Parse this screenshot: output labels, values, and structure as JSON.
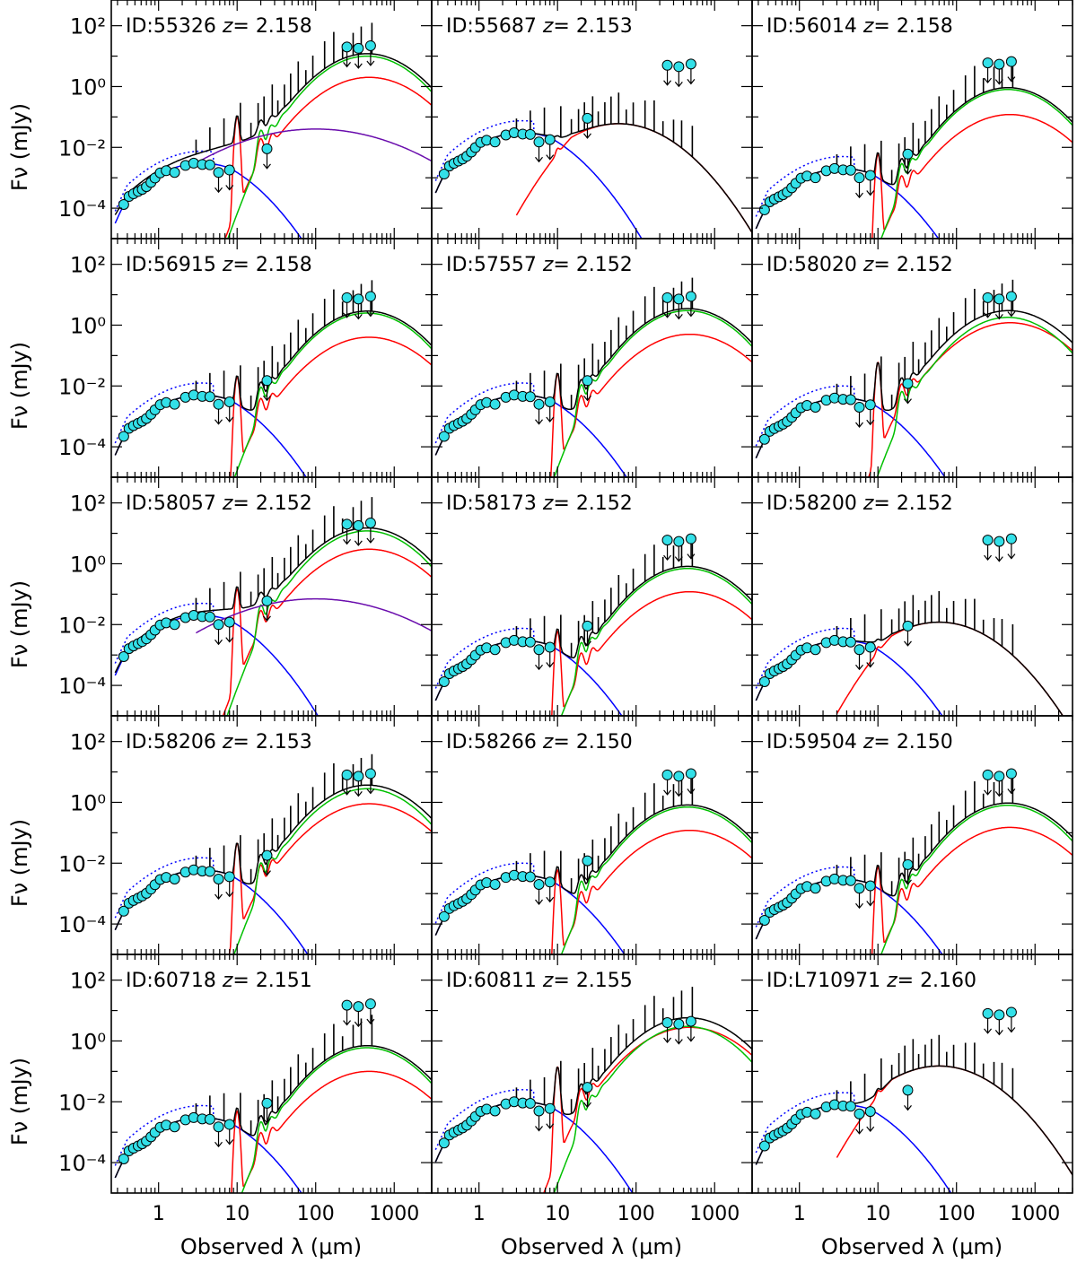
{
  "chart_data": {
    "type": "line",
    "layout": "5 rows x 3 columns grid of SED panels",
    "xlabel": "Observed λ (μm)",
    "ylabel": "Fν (mJy)",
    "xscale": "log",
    "yscale": "log",
    "xlim": [
      0.25,
      3000
    ],
    "ylim": [
      1e-05,
      700
    ],
    "xticks": [
      1,
      10,
      100,
      1000
    ],
    "xtick_labels": [
      "1",
      "10",
      "100",
      "1000"
    ],
    "yticks": [
      0.0001,
      0.01,
      1,
      100
    ],
    "ytick_labels": [
      "10⁻⁴",
      "10⁻²",
      "10⁰",
      "10²"
    ],
    "series_colors": {
      "total": "#000000",
      "stellar": "#0000ff",
      "unattenuated_stellar": "#0000ff",
      "dust": "#00c000",
      "dust_alt": "#ff0000",
      "agn": "#6a0dad",
      "photometry": "#33e0e8"
    },
    "panels": [
      {
        "id": "ID:55326",
        "z_label": "z=",
        "z": "2.158",
        "stellar_peak": 0.003,
        "dust_peak": 10,
        "red_peak": 2.0,
        "green": true,
        "agn": 0.04,
        "ir_only": false,
        "upper_limits_y": 20
      },
      {
        "id": "ID:55687",
        "z_label": "z=",
        "z": "2.153",
        "stellar_peak": 0.03,
        "dust_peak": 0.06,
        "red_peak": 0.06,
        "green": false,
        "agn": 0,
        "ir_only": true,
        "upper_limits_y": 5
      },
      {
        "id": "ID:56014",
        "z_label": "z=",
        "z": "2.158",
        "stellar_peak": 0.002,
        "dust_peak": 0.8,
        "red_peak": 0.12,
        "green": true,
        "agn": 0,
        "ir_only": false,
        "upper_limits_y": 6
      },
      {
        "id": "ID:56915",
        "z_label": "z=",
        "z": "2.158",
        "stellar_peak": 0.005,
        "dust_peak": 2.5,
        "red_peak": 0.4,
        "green": true,
        "agn": 0,
        "ir_only": false,
        "upper_limits_y": 8
      },
      {
        "id": "ID:57557",
        "z_label": "z=",
        "z": "2.152",
        "stellar_peak": 0.005,
        "dust_peak": 3.0,
        "red_peak": 0.5,
        "green": true,
        "agn": 0,
        "ir_only": false,
        "upper_limits_y": 8
      },
      {
        "id": "ID:58020",
        "z_label": "z=",
        "z": "2.152",
        "stellar_peak": 0.004,
        "dust_peak": 1.8,
        "red_peak": 1.2,
        "green": true,
        "agn": 0,
        "ir_only": false,
        "upper_limits_y": 8
      },
      {
        "id": "ID:58057",
        "z_label": "z=",
        "z": "2.152",
        "stellar_peak": 0.02,
        "dust_peak": 12,
        "red_peak": 3.0,
        "green": true,
        "agn": 0.07,
        "ir_only": false,
        "upper_limits_y": 20
      },
      {
        "id": "ID:58173",
        "z_label": "z=",
        "z": "2.152",
        "stellar_peak": 0.003,
        "dust_peak": 0.7,
        "red_peak": 0.12,
        "green": true,
        "agn": 0,
        "ir_only": false,
        "upper_limits_y": 6
      },
      {
        "id": "ID:58200",
        "z_label": "z=",
        "z": "2.152",
        "stellar_peak": 0.003,
        "dust_peak": 0.012,
        "red_peak": 0.012,
        "green": false,
        "agn": 0,
        "ir_only": true,
        "upper_limits_y": 6
      },
      {
        "id": "ID:58206",
        "z_label": "z=",
        "z": "2.153",
        "stellar_peak": 0.006,
        "dust_peak": 2.8,
        "red_peak": 0.9,
        "green": true,
        "agn": 0,
        "ir_only": false,
        "upper_limits_y": 8
      },
      {
        "id": "ID:58266",
        "z_label": "z=",
        "z": "2.150",
        "stellar_peak": 0.004,
        "dust_peak": 0.7,
        "red_peak": 0.12,
        "green": true,
        "agn": 0,
        "ir_only": false,
        "upper_limits_y": 8
      },
      {
        "id": "ID:59504",
        "z_label": "z=",
        "z": "2.150",
        "stellar_peak": 0.003,
        "dust_peak": 0.8,
        "red_peak": 0.15,
        "green": true,
        "agn": 0,
        "ir_only": false,
        "upper_limits_y": 8
      },
      {
        "id": "ID:60718",
        "z_label": "z=",
        "z": "2.151",
        "stellar_peak": 0.003,
        "dust_peak": 0.6,
        "red_peak": 0.1,
        "green": true,
        "agn": 0,
        "ir_only": false,
        "upper_limits_y": 15
      },
      {
        "id": "ID:60811",
        "z_label": "z=",
        "z": "2.155",
        "stellar_peak": 0.01,
        "dust_peak": 3.0,
        "red_peak": 2.8,
        "green": true,
        "agn": 0,
        "ir_only": false,
        "upper_limits_y": 4
      },
      {
        "id": "ID:L710971",
        "z_label": "z=",
        "z": "2.160",
        "stellar_peak": 0.008,
        "dust_peak": 0.15,
        "red_peak": 0.15,
        "green": false,
        "agn": 0,
        "ir_only": true,
        "upper_limits_y": 8
      }
    ]
  }
}
